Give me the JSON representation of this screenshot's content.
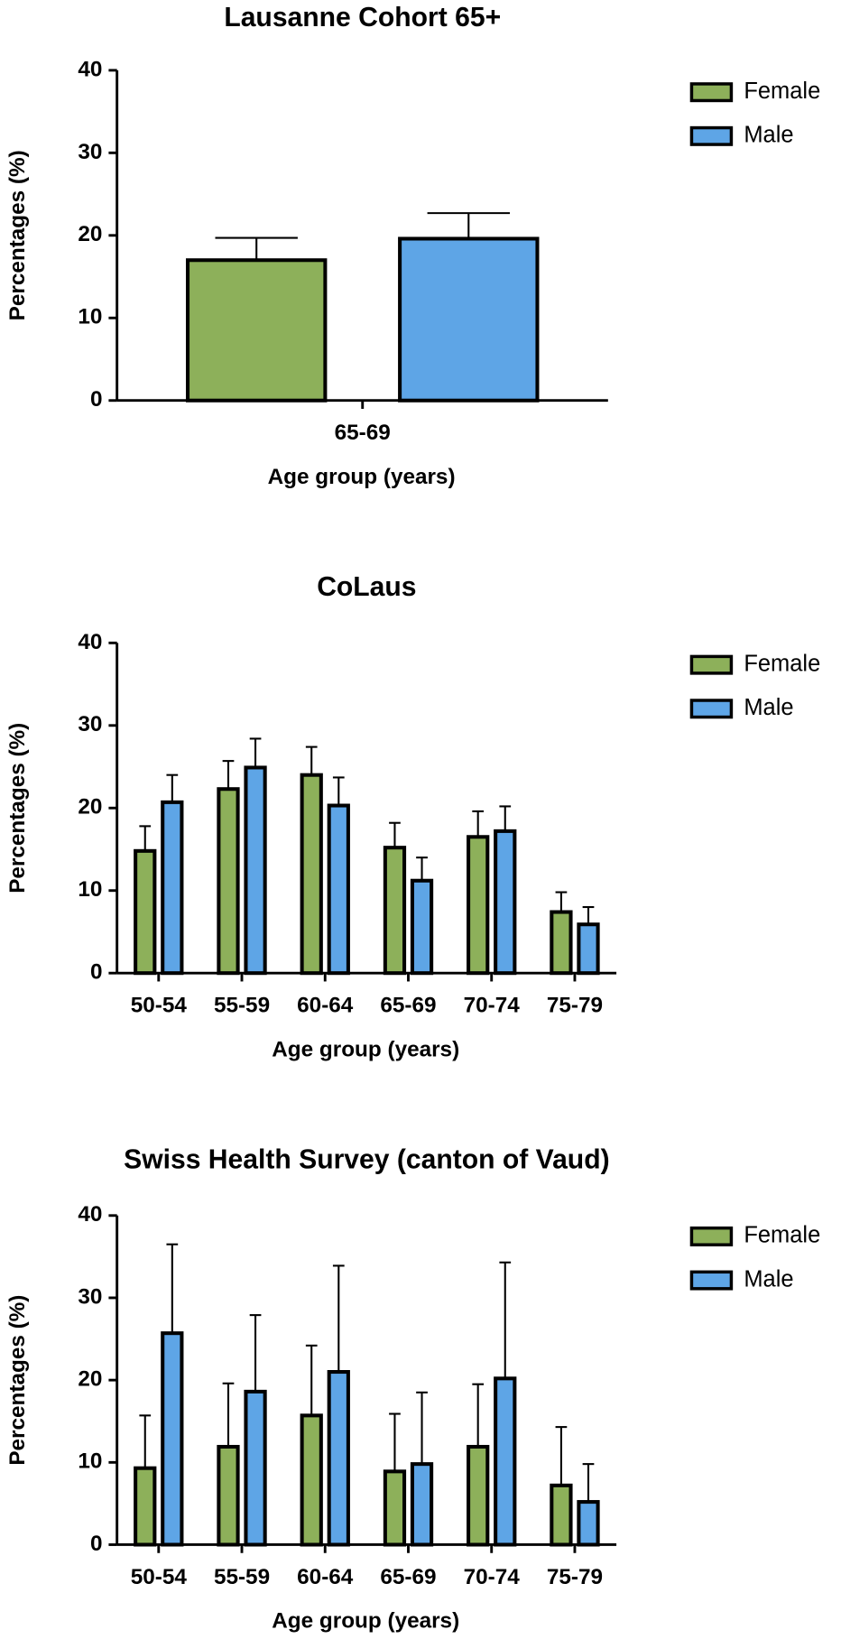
{
  "chart_data": [
    {
      "type": "bar",
      "title": "Lausanne Cohort 65+",
      "xlabel": "Age group (years)",
      "ylabel": "Percentages (%)",
      "categories": [
        "65-69"
      ],
      "series": [
        {
          "name": "Female",
          "color": "#8db05a",
          "values": [
            17.0
          ],
          "errors": [
            2.7
          ]
        },
        {
          "name": "Male",
          "color": "#5ea5e6",
          "values": [
            19.6
          ],
          "errors": [
            3.1
          ]
        }
      ],
      "ylim": [
        0,
        40
      ],
      "yticks": [
        0,
        10,
        20,
        30,
        40
      ],
      "legend": "right"
    },
    {
      "type": "bar",
      "title": "CoLaus",
      "xlabel": "Age group (years)",
      "ylabel": "Percentages (%)",
      "categories": [
        "50-54",
        "55-59",
        "60-64",
        "65-69",
        "70-74",
        "75-79"
      ],
      "series": [
        {
          "name": "Female",
          "color": "#8db05a",
          "values": [
            14.8,
            22.3,
            24.0,
            15.2,
            16.5,
            7.4
          ],
          "errors": [
            3.0,
            3.4,
            3.4,
            3.0,
            3.1,
            2.4
          ]
        },
        {
          "name": "Male",
          "color": "#5ea5e6",
          "values": [
            20.7,
            24.9,
            20.3,
            11.2,
            17.2,
            5.9
          ],
          "errors": [
            3.3,
            3.5,
            3.4,
            2.8,
            3.0,
            2.1
          ]
        }
      ],
      "ylim": [
        0,
        40
      ],
      "yticks": [
        0,
        10,
        20,
        30,
        40
      ],
      "legend": "right"
    },
    {
      "type": "bar",
      "title": "Swiss Health Survey (canton of Vaud)",
      "xlabel": "Age group (years)",
      "ylabel": "Percentages (%)",
      "categories": [
        "50-54",
        "55-59",
        "60-64",
        "65-69",
        "70-74",
        "75-79"
      ],
      "series": [
        {
          "name": "Female",
          "color": "#8db05a",
          "values": [
            9.3,
            11.9,
            15.7,
            8.9,
            11.9,
            7.2
          ],
          "errors": [
            6.4,
            7.7,
            8.5,
            7.0,
            7.6,
            7.1
          ]
        },
        {
          "name": "Male",
          "color": "#5ea5e6",
          "values": [
            25.7,
            18.6,
            21.0,
            9.8,
            20.2,
            5.2
          ],
          "errors": [
            10.8,
            9.3,
            12.9,
            8.7,
            14.1,
            4.6
          ]
        }
      ],
      "ylim": [
        0,
        40
      ],
      "yticks": [
        0,
        10,
        20,
        30,
        40
      ],
      "legend": "right"
    }
  ]
}
